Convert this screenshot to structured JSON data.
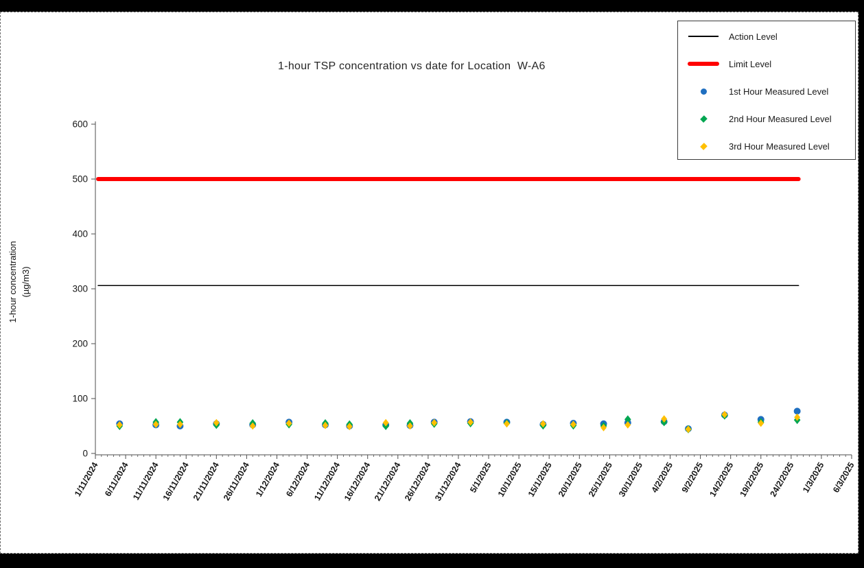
{
  "window": {
    "frame_color": "#000000",
    "panel_color": "#ffffff"
  },
  "chart_data": {
    "type": "scatter",
    "title": "1-hour TSP concentration vs date for Location  W-A6",
    "xlabel": "",
    "ylabel": "1-hour concentration (µg/m3)",
    "ylabel_lines": [
      "1-hour concentration",
      "(µg/m3)"
    ],
    "ylim": [
      0,
      600
    ],
    "yticks": [
      0,
      100,
      200,
      300,
      400,
      500,
      600
    ],
    "grid": false,
    "legend_position": "top-right",
    "x_tick_labels": [
      "1/11/2024",
      "6/11/2024",
      "11/11/2024",
      "16/11/2024",
      "21/11/2024",
      "26/11/2024",
      "1/12/2024",
      "6/12/2024",
      "11/12/2024",
      "16/12/2024",
      "21/12/2024",
      "26/12/2024",
      "31/12/2024",
      "5/1/2025",
      "10/1/2025",
      "15/1/2025",
      "20/1/2025",
      "25/1/2025",
      "30/1/2025",
      "4/2/2025",
      "9/2/2025",
      "14/2/2025",
      "19/2/2025",
      "24/2/2025",
      "1/3/2025",
      "6/3/2025"
    ],
    "x_major_tick_interval_days": 5,
    "x_minor_tick_interval_days": 1,
    "reference_lines": [
      {
        "name": "Action Level",
        "value": 306,
        "color": "#000000",
        "width": 1.5
      },
      {
        "name": "Limit Level",
        "value": 500,
        "color": "#FF0000",
        "width": 6
      }
    ],
    "dates": [
      "5/11/2024",
      "11/11/2024",
      "15/11/2024",
      "21/11/2024",
      "27/11/2024",
      "3/12/2024",
      "9/12/2024",
      "13/12/2024",
      "19/12/2024",
      "23/12/2024",
      "27/12/2024",
      "2/1/2025",
      "8/1/2025",
      "14/1/2025",
      "19/1/2025",
      "24/1/2025",
      "28/1/2025",
      "3/2/2025",
      "7/2/2025",
      "13/2/2025",
      "19/2/2025",
      "25/2/2025"
    ],
    "series": [
      {
        "name": "1st Hour Measured Level",
        "marker": "circle",
        "color": "#1F6FC0",
        "values": [
          54,
          52,
          50,
          54,
          52,
          57,
          52,
          50,
          52,
          51,
          57,
          58,
          57,
          53,
          55,
          54,
          56,
          58,
          45,
          70,
          62,
          77
        ]
      },
      {
        "name": "2nd Hour Measured Level",
        "marker": "diamond",
        "color": "#00A651",
        "values": [
          50,
          57,
          57,
          52,
          55,
          53,
          55,
          53,
          50,
          55,
          54,
          55,
          55,
          51,
          51,
          50,
          62,
          57,
          44,
          69,
          57,
          61
        ]
      },
      {
        "name": "3rd Hour Measured Level",
        "marker": "diamond",
        "color": "#FFC000",
        "values": [
          52,
          53,
          53,
          56,
          50,
          55,
          51,
          49,
          56,
          50,
          56,
          57,
          54,
          54,
          53,
          47,
          52,
          63,
          44,
          71,
          55,
          66
        ]
      }
    ]
  }
}
